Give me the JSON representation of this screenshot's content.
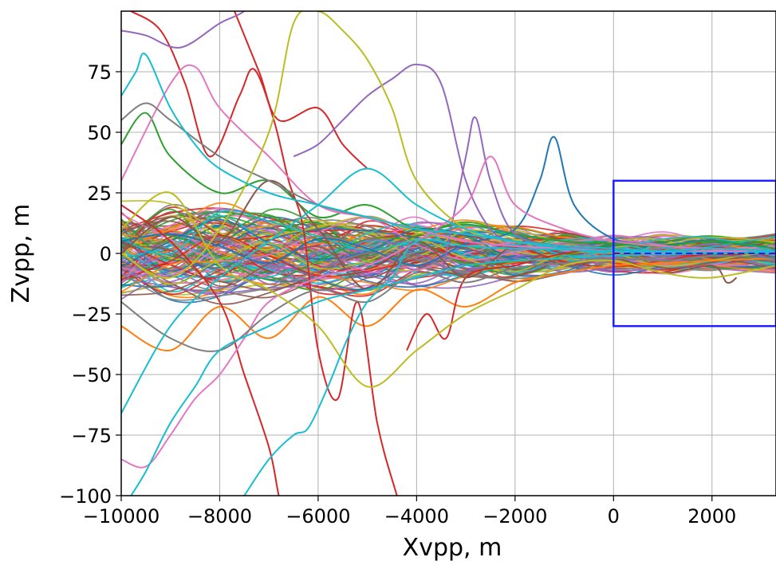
{
  "chart_data": {
    "type": "line",
    "xlabel": "Xvpp, m",
    "ylabel": "Zvpp, m",
    "xlim": [
      -10000,
      3300
    ],
    "ylim": [
      -100,
      100
    ],
    "xticks": [
      -10000,
      -8000,
      -6000,
      -4000,
      -2000,
      0,
      2000
    ],
    "xtick_labels": [
      "−10000",
      "−8000",
      "−6000",
      "−4000",
      "−2000",
      "0",
      "2000"
    ],
    "yticks": [
      -100,
      -75,
      -50,
      -25,
      0,
      25,
      50,
      75
    ],
    "ytick_labels": [
      "−100",
      "−75",
      "−50",
      "−25",
      "0",
      "25",
      "50",
      "75"
    ],
    "grid": true,
    "legend": "none",
    "box": {
      "x0": 0,
      "x1": 3300,
      "y0": -30,
      "y1": 30,
      "color": "#1f1fff"
    },
    "reference_line": {
      "y": 0,
      "x0": 0,
      "x1": 3300,
      "style": "dashed",
      "color": "#1f1fff"
    },
    "palette": [
      "#1f77b4",
      "#ff7f0e",
      "#2ca02c",
      "#d62728",
      "#9467bd",
      "#8c564b",
      "#e377c2",
      "#7f7f7f",
      "#bcbd22",
      "#17becf"
    ],
    "series": [
      {
        "color": "#1f77b4",
        "x": [
          -10000,
          -9000,
          -8000,
          -7000,
          -6000,
          -5000,
          -4000,
          -3000,
          -2000,
          -1500,
          -1200,
          -800,
          0,
          1000,
          2000,
          3300
        ],
        "y": [
          5,
          8,
          3,
          -4,
          6,
          2,
          -5,
          4,
          10,
          30,
          48,
          20,
          6,
          3,
          2,
          1
        ]
      },
      {
        "color": "#ff7f0e",
        "x": [
          -10000,
          -9000,
          -8000,
          -7000,
          -6000,
          -5000,
          -4000,
          -3000,
          -2000,
          -1000,
          0,
          1000,
          2000,
          3300
        ],
        "y": [
          -30,
          -40,
          -22,
          -35,
          -18,
          -30,
          -15,
          -22,
          -12,
          -8,
          -5,
          -4,
          -3,
          -2
        ]
      },
      {
        "color": "#2ca02c",
        "x": [
          -10000,
          -9500,
          -9000,
          -8000,
          -7000,
          -6000,
          -5000,
          -4000,
          -3000,
          -2000,
          -1000,
          0,
          1000,
          2000,
          3300
        ],
        "y": [
          45,
          58,
          40,
          25,
          30,
          15,
          20,
          10,
          12,
          8,
          5,
          4,
          3,
          5,
          2
        ]
      },
      {
        "color": "#d62728",
        "x": [
          -9800,
          -9200,
          -8700,
          -8200,
          -7600,
          -7300,
          -6900,
          -6600,
          -6300,
          -6000,
          -5600,
          -5200,
          -4800,
          -4400,
          -4100
        ],
        "y": [
          100,
          92,
          70,
          40,
          65,
          76,
          55,
          30,
          10,
          -40,
          -60,
          -20,
          -70,
          -100,
          -120
        ]
      },
      {
        "color": "#d62728",
        "x": [
          -10000,
          -9000,
          -8000,
          -7500,
          -7000,
          -6800,
          -6500
        ],
        "y": [
          20,
          5,
          -20,
          -50,
          -80,
          -100,
          -130
        ]
      },
      {
        "color": "#d62728",
        "x": [
          -7700,
          -7200,
          -6800,
          -6000,
          -5500,
          -5000
        ],
        "y": [
          100,
          75,
          55,
          60,
          45,
          35
        ]
      },
      {
        "color": "#d62728",
        "x": [
          -4200,
          -3800,
          -3400,
          -3000,
          -2000,
          -1000,
          0,
          1000,
          2000,
          3300
        ],
        "y": [
          -40,
          -25,
          -35,
          -10,
          -5,
          0,
          2,
          0,
          -1,
          1
        ]
      },
      {
        "color": "#9467bd",
        "x": [
          -10000,
          -9500,
          -8800,
          -8000,
          -7500,
          -7000,
          -6500
        ],
        "y": [
          92,
          90,
          85,
          95,
          100,
          110,
          125
        ]
      },
      {
        "color": "#9467bd",
        "x": [
          -6500,
          -6000,
          -5500,
          -5000,
          -4500,
          -4000,
          -3500,
          -3000,
          -2500,
          -2000,
          -1000,
          0,
          1000,
          3300
        ],
        "y": [
          40,
          45,
          55,
          65,
          72,
          78,
          70,
          30,
          10,
          5,
          3,
          2,
          1,
          0
        ]
      },
      {
        "color": "#9467bd",
        "x": [
          -3500,
          -3000,
          -2800,
          -2500,
          -2000,
          -1000,
          0,
          2000,
          3300
        ],
        "y": [
          -10,
          40,
          56,
          30,
          8,
          3,
          1,
          0,
          1
        ]
      },
      {
        "color": "#8c564b",
        "x": [
          -10000,
          -9000,
          -8000,
          -7000,
          -6000,
          -5000,
          -4000,
          -3000,
          -2000,
          -1000,
          0,
          1000,
          2000,
          2300,
          2500
        ],
        "y": [
          0,
          15,
          5,
          30,
          10,
          -15,
          5,
          -10,
          3,
          -5,
          -2,
          -8,
          -5,
          -12,
          -10
        ]
      },
      {
        "color": "#e377c2",
        "x": [
          -10000,
          -9500,
          -9000,
          -8500,
          -8000,
          -7500,
          -7000,
          -6000,
          -5000,
          -4000,
          -3000,
          -2500,
          -2000,
          -1000,
          0,
          1000,
          2000,
          3300
        ],
        "y": [
          -85,
          -88,
          -75,
          -60,
          -50,
          -35,
          -20,
          -10,
          -5,
          5,
          20,
          40,
          20,
          10,
          5,
          3,
          2,
          1
        ]
      },
      {
        "color": "#e377c2",
        "x": [
          -10000,
          -9000,
          -8500,
          -8000,
          -7000,
          -6000,
          -5000,
          -4000,
          -3000,
          -2000,
          -1000,
          0,
          1000,
          2000,
          3300
        ],
        "y": [
          30,
          70,
          77,
          60,
          40,
          20,
          15,
          10,
          5,
          3,
          2,
          1,
          0,
          1,
          0
        ]
      },
      {
        "color": "#7f7f7f",
        "x": [
          -10000,
          -9000,
          -8000,
          -7000,
          -6000,
          -5000,
          -4000,
          -3000,
          -2000,
          -1000,
          0,
          1000,
          2000,
          3300
        ],
        "y": [
          -20,
          -35,
          -40,
          -25,
          -15,
          -20,
          -8,
          -12,
          -6,
          -4,
          -2,
          -3,
          -1,
          -2
        ]
      },
      {
        "color": "#7f7f7f",
        "x": [
          -10000,
          -9500,
          -9000,
          -8000,
          -7000,
          -6000,
          -5000
        ],
        "y": [
          55,
          62,
          55,
          40,
          30,
          20,
          15
        ]
      },
      {
        "color": "#bcbd22",
        "x": [
          -10000,
          -9000,
          -8000,
          -7000,
          -6500,
          -6000,
          -5500,
          -5000,
          -4500,
          -4000,
          -3000,
          -2000,
          -1000,
          0,
          1000,
          2000,
          3300
        ],
        "y": [
          0,
          -10,
          10,
          50,
          95,
          100,
          92,
          80,
          60,
          30,
          10,
          5,
          2,
          0,
          1,
          0,
          1
        ]
      },
      {
        "color": "#bcbd22",
        "x": [
          -10000,
          -9000,
          -8000,
          -7000,
          -6000,
          -5000,
          -4000,
          -3000,
          -2000,
          -1000,
          0,
          1000,
          2000,
          3300
        ],
        "y": [
          10,
          25,
          -5,
          -15,
          -30,
          -55,
          -40,
          -25,
          -15,
          -5,
          -3,
          -8,
          -10,
          -5
        ]
      },
      {
        "color": "#17becf",
        "x": [
          -10000,
          -9700,
          -9500,
          -9000,
          -8500,
          -8000,
          -7000,
          -6000,
          -5000,
          -4000,
          -3000,
          -2000,
          -1000,
          0,
          1000,
          2000,
          3300
        ],
        "y": [
          65,
          75,
          82,
          60,
          45,
          35,
          25,
          20,
          15,
          10,
          8,
          5,
          3,
          2,
          1,
          2,
          1
        ]
      },
      {
        "color": "#17becf",
        "x": [
          -9800,
          -9500,
          -9000,
          -8500,
          -8000,
          -7000,
          -6000,
          -5000,
          -4000,
          -3000,
          -2000,
          -1000,
          0,
          2000,
          3300
        ],
        "y": [
          -100,
          -90,
          -70,
          -55,
          -40,
          -30,
          -20,
          -15,
          -10,
          -5,
          -3,
          -2,
          -1,
          0,
          0
        ]
      },
      {
        "color": "#17becf",
        "x": [
          -7500,
          -7000,
          -6500,
          -6200,
          -5800,
          -5400,
          -5000,
          -4500,
          -4000,
          -3000,
          -2000,
          0,
          3300
        ],
        "y": [
          -100,
          -85,
          -75,
          -72,
          -55,
          -35,
          -20,
          -10,
          5,
          3,
          2,
          1,
          0
        ]
      },
      {
        "color": "#17becf",
        "x": [
          -10000,
          -9000,
          -8000,
          -7000,
          -6000,
          -5000,
          -4000,
          -3000,
          -2000,
          -1000,
          0,
          1000,
          2000,
          3300
        ],
        "y": [
          -66,
          -30,
          -10,
          5,
          20,
          35,
          20,
          10,
          5,
          2,
          0,
          1,
          0,
          1
        ]
      }
    ],
    "band": {
      "count": 120,
      "x": [
        -10000,
        -9000,
        -8000,
        -7000,
        -6000,
        -5000,
        -4000,
        -3000,
        -2000,
        -1000,
        0,
        1000,
        2000,
        3300
      ],
      "amplitude": [
        20,
        20,
        19,
        18,
        17,
        16,
        14,
        13,
        11,
        9,
        8,
        8,
        8,
        8
      ]
    }
  }
}
